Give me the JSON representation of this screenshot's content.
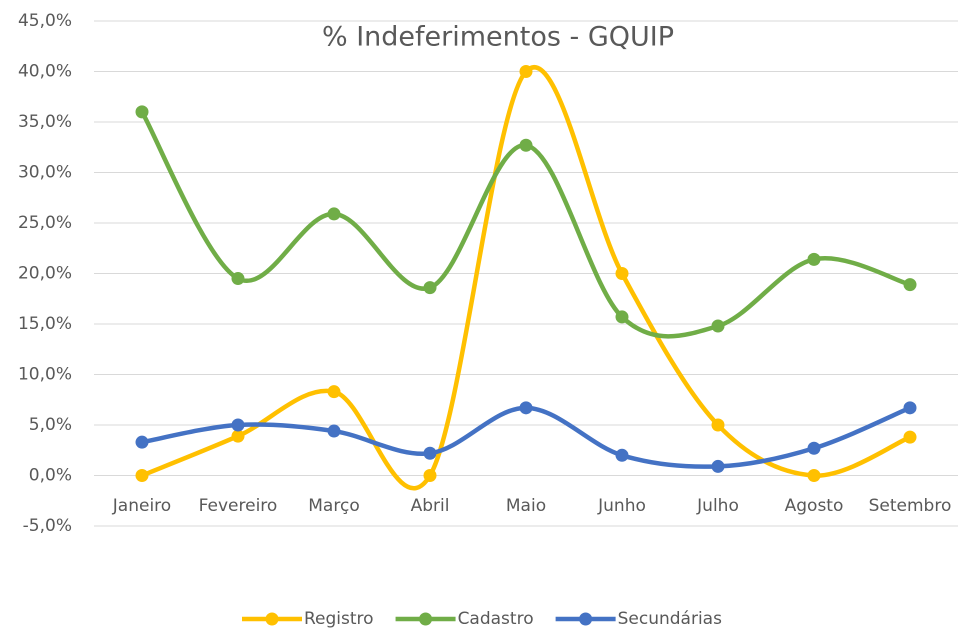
{
  "chart_data": {
    "type": "line",
    "title": "% Indeferimentos - GQUIP",
    "categories": [
      "Janeiro",
      "Fevereiro",
      "Março",
      "Abril",
      "Maio",
      "Junho",
      "Julho",
      "Agosto",
      "Setembro"
    ],
    "series": [
      {
        "name": "Registro",
        "color": "#ffc000",
        "values": [
          0,
          3.9,
          8.3,
          0,
          40,
          20,
          5,
          0,
          3.8
        ]
      },
      {
        "name": "Cadastro",
        "color": "#70ad47",
        "values": [
          36,
          19.5,
          25.9,
          18.6,
          32.7,
          15.7,
          14.8,
          21.4,
          18.9
        ]
      },
      {
        "name": "Secundárias",
        "color": "#4472c4",
        "values": [
          3.3,
          5.0,
          4.4,
          2.2,
          6.7,
          2.0,
          0.9,
          2.7,
          6.7
        ]
      }
    ],
    "ylim": [
      -5,
      45
    ],
    "yticks": [
      {
        "value": -5,
        "label": "-5,0%"
      },
      {
        "value": 0,
        "label": "0,0%"
      },
      {
        "value": 5,
        "label": "5,0%"
      },
      {
        "value": 10,
        "label": "10,0%"
      },
      {
        "value": 15,
        "label": "15,0%"
      },
      {
        "value": 20,
        "label": "20,0%"
      },
      {
        "value": 25,
        "label": "25,0%"
      },
      {
        "value": 30,
        "label": "30,0%"
      },
      {
        "value": 35,
        "label": "35,0%"
      },
      {
        "value": 40,
        "label": "40,0%"
      },
      {
        "value": 45,
        "label": "45,0%"
      }
    ],
    "grid": true,
    "smooth": true,
    "legend": "bottom"
  }
}
